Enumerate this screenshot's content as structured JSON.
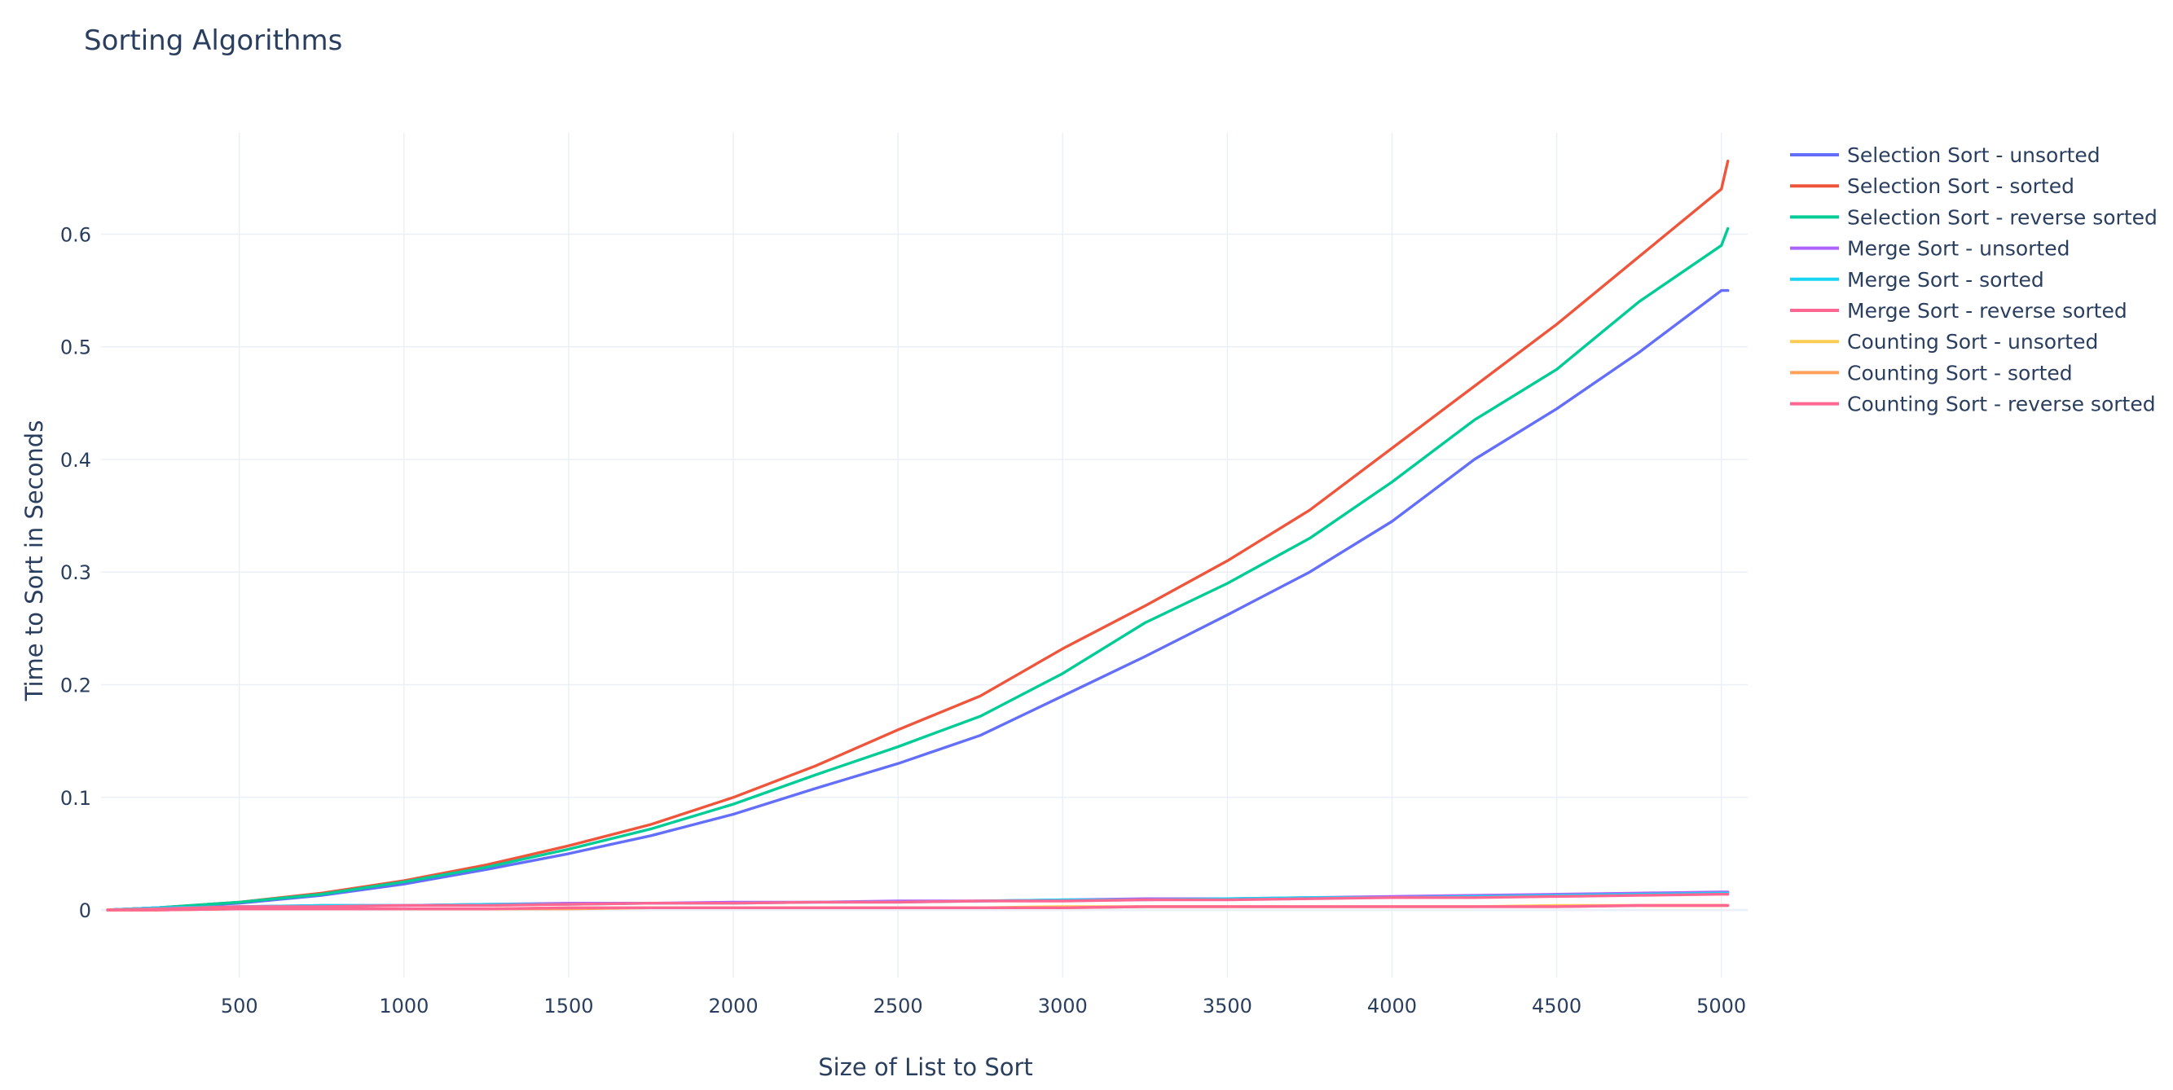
{
  "chart_data": {
    "type": "line",
    "title": "Sorting Algorithms",
    "xlabel": "Size of List to Sort",
    "ylabel": "Time to Sort in Seconds",
    "xlim": [
      80,
      5080
    ],
    "ylim": [
      -0.06,
      0.69
    ],
    "x_ticks": [
      500,
      1000,
      1500,
      2000,
      2500,
      3000,
      3500,
      4000,
      4500,
      5000
    ],
    "y_ticks": [
      0,
      0.1,
      0.2,
      0.3,
      0.4,
      0.5,
      0.6
    ],
    "x_tick_labels": [
      "500",
      "1000",
      "1500",
      "2000",
      "2500",
      "3000",
      "3500",
      "4000",
      "4500",
      "5000"
    ],
    "y_tick_labels": [
      "0",
      "0.1",
      "0.2",
      "0.3",
      "0.4",
      "0.5",
      "0.6"
    ],
    "grid": true,
    "legend_position": "top-right",
    "x": [
      100,
      250,
      500,
      750,
      1000,
      1250,
      1500,
      1750,
      2000,
      2250,
      2500,
      2750,
      3000,
      3250,
      3500,
      3750,
      4000,
      4250,
      4500,
      4750,
      5000,
      5020
    ],
    "series": [
      {
        "name": "Selection Sort - unsorted",
        "color": "#636efa",
        "values": [
          0.0,
          0.002,
          0.006,
          0.013,
          0.023,
          0.036,
          0.05,
          0.066,
          0.085,
          0.108,
          0.13,
          0.155,
          0.19,
          0.225,
          0.262,
          0.3,
          0.345,
          0.4,
          0.445,
          0.495,
          0.55,
          0.55
        ]
      },
      {
        "name": "Selection Sort - sorted",
        "color": "#ef553b",
        "values": [
          0.0,
          0.002,
          0.007,
          0.015,
          0.026,
          0.04,
          0.057,
          0.076,
          0.1,
          0.128,
          0.16,
          0.19,
          0.232,
          0.27,
          0.31,
          0.355,
          0.41,
          0.465,
          0.52,
          0.58,
          0.64,
          0.665
        ]
      },
      {
        "name": "Selection Sort - reverse sorted",
        "color": "#00cc96",
        "values": [
          0.0,
          0.002,
          0.007,
          0.014,
          0.025,
          0.038,
          0.054,
          0.072,
          0.094,
          0.12,
          0.145,
          0.172,
          0.21,
          0.255,
          0.29,
          0.33,
          0.38,
          0.435,
          0.48,
          0.54,
          0.59,
          0.605
        ]
      },
      {
        "name": "Merge Sort - unsorted",
        "color": "#ab63fa",
        "values": [
          0.0,
          0.002,
          0.003,
          0.004,
          0.004,
          0.005,
          0.006,
          0.006,
          0.007,
          0.007,
          0.008,
          0.008,
          0.009,
          0.01,
          0.01,
          0.011,
          0.012,
          0.013,
          0.014,
          0.015,
          0.016,
          0.016
        ]
      },
      {
        "name": "Merge Sort - sorted",
        "color": "#19d3f3",
        "values": [
          0.0,
          0.002,
          0.003,
          0.004,
          0.004,
          0.005,
          0.005,
          0.006,
          0.006,
          0.007,
          0.007,
          0.008,
          0.009,
          0.009,
          0.01,
          0.011,
          0.011,
          0.012,
          0.013,
          0.014,
          0.015,
          0.015
        ]
      },
      {
        "name": "Merge Sort - reverse sorted",
        "color": "#ff6692",
        "values": [
          0.0,
          0.001,
          0.003,
          0.003,
          0.004,
          0.004,
          0.005,
          0.006,
          0.006,
          0.007,
          0.007,
          0.008,
          0.008,
          0.009,
          0.009,
          0.01,
          0.011,
          0.011,
          0.012,
          0.013,
          0.014,
          0.014
        ]
      },
      {
        "name": "Counting Sort - unsorted",
        "color": "#fecb52",
        "values": [
          0.0,
          0.0,
          0.001,
          0.001,
          0.001,
          0.001,
          0.002,
          0.002,
          0.002,
          0.002,
          0.002,
          0.002,
          0.003,
          0.003,
          0.003,
          0.003,
          0.003,
          0.003,
          0.004,
          0.004,
          0.004,
          0.004
        ]
      },
      {
        "name": "Counting Sort - sorted",
        "color": "#ffa15a",
        "values": [
          0.0,
          0.0,
          0.001,
          0.001,
          0.001,
          0.001,
          0.001,
          0.002,
          0.002,
          0.002,
          0.002,
          0.002,
          0.002,
          0.003,
          0.003,
          0.003,
          0.003,
          0.003,
          0.003,
          0.004,
          0.004,
          0.004
        ]
      },
      {
        "name": "Counting Sort - reverse sorted",
        "color": "#ff6692",
        "values": [
          0.0,
          0.0,
          0.001,
          0.001,
          0.001,
          0.001,
          0.002,
          0.002,
          0.002,
          0.002,
          0.002,
          0.002,
          0.002,
          0.003,
          0.003,
          0.003,
          0.003,
          0.003,
          0.003,
          0.004,
          0.004,
          0.004
        ]
      }
    ]
  }
}
